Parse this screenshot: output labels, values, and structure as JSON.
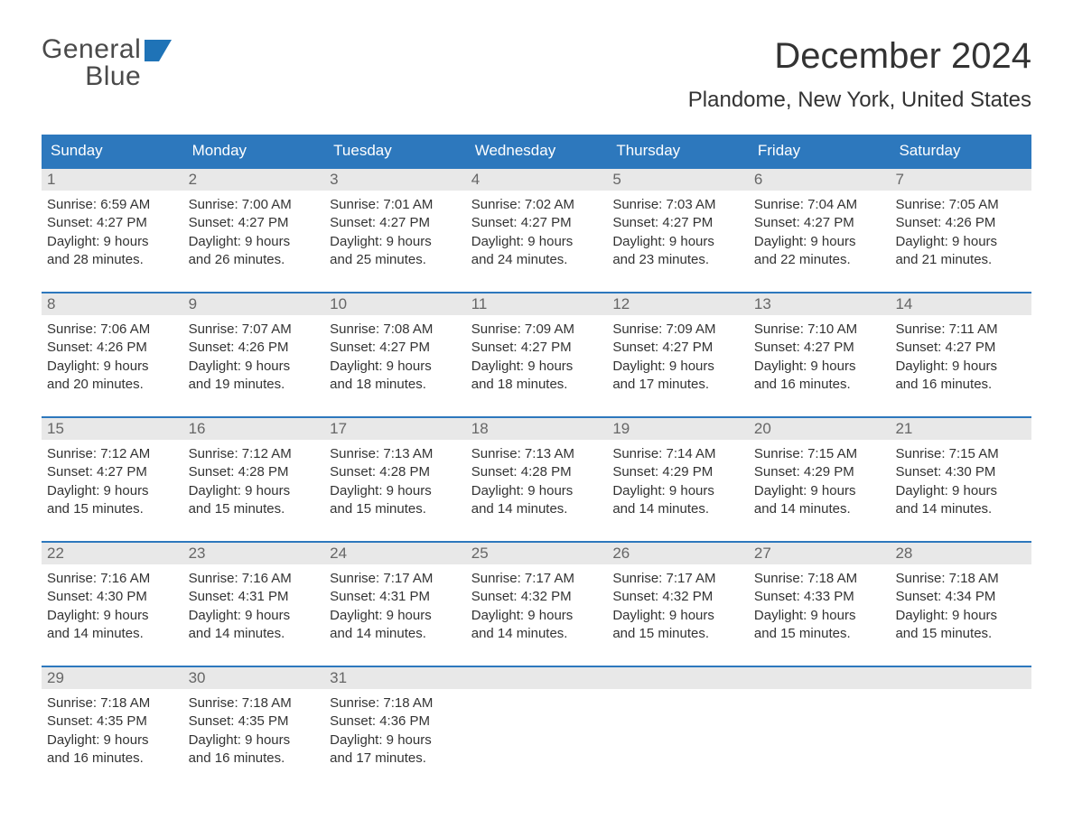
{
  "brand": {
    "word1": "General",
    "word2": "Blue",
    "accent_color": "#1f73b7",
    "text_color": "#4a4a4a"
  },
  "title": {
    "month": "December 2024",
    "location": "Plandome, New York, United States"
  },
  "colors": {
    "header_bg": "#2d78bd",
    "header_text": "#ffffff",
    "week_border": "#2d78bd",
    "daynum_bg": "#e8e8e8",
    "daynum_text": "#666666",
    "body_text": "#333333",
    "page_bg": "#ffffff"
  },
  "typography": {
    "month_title_fontsize": 40,
    "location_fontsize": 24,
    "dayhead_fontsize": 17,
    "daynum_fontsize": 17,
    "daybody_fontsize": 15
  },
  "day_headers": [
    "Sunday",
    "Monday",
    "Tuesday",
    "Wednesday",
    "Thursday",
    "Friday",
    "Saturday"
  ],
  "weeks": [
    [
      {
        "num": "1",
        "sunrise": "Sunrise: 6:59 AM",
        "sunset": "Sunset: 4:27 PM",
        "daylight1": "Daylight: 9 hours",
        "daylight2": "and 28 minutes."
      },
      {
        "num": "2",
        "sunrise": "Sunrise: 7:00 AM",
        "sunset": "Sunset: 4:27 PM",
        "daylight1": "Daylight: 9 hours",
        "daylight2": "and 26 minutes."
      },
      {
        "num": "3",
        "sunrise": "Sunrise: 7:01 AM",
        "sunset": "Sunset: 4:27 PM",
        "daylight1": "Daylight: 9 hours",
        "daylight2": "and 25 minutes."
      },
      {
        "num": "4",
        "sunrise": "Sunrise: 7:02 AM",
        "sunset": "Sunset: 4:27 PM",
        "daylight1": "Daylight: 9 hours",
        "daylight2": "and 24 minutes."
      },
      {
        "num": "5",
        "sunrise": "Sunrise: 7:03 AM",
        "sunset": "Sunset: 4:27 PM",
        "daylight1": "Daylight: 9 hours",
        "daylight2": "and 23 minutes."
      },
      {
        "num": "6",
        "sunrise": "Sunrise: 7:04 AM",
        "sunset": "Sunset: 4:27 PM",
        "daylight1": "Daylight: 9 hours",
        "daylight2": "and 22 minutes."
      },
      {
        "num": "7",
        "sunrise": "Sunrise: 7:05 AM",
        "sunset": "Sunset: 4:26 PM",
        "daylight1": "Daylight: 9 hours",
        "daylight2": "and 21 minutes."
      }
    ],
    [
      {
        "num": "8",
        "sunrise": "Sunrise: 7:06 AM",
        "sunset": "Sunset: 4:26 PM",
        "daylight1": "Daylight: 9 hours",
        "daylight2": "and 20 minutes."
      },
      {
        "num": "9",
        "sunrise": "Sunrise: 7:07 AM",
        "sunset": "Sunset: 4:26 PM",
        "daylight1": "Daylight: 9 hours",
        "daylight2": "and 19 minutes."
      },
      {
        "num": "10",
        "sunrise": "Sunrise: 7:08 AM",
        "sunset": "Sunset: 4:27 PM",
        "daylight1": "Daylight: 9 hours",
        "daylight2": "and 18 minutes."
      },
      {
        "num": "11",
        "sunrise": "Sunrise: 7:09 AM",
        "sunset": "Sunset: 4:27 PM",
        "daylight1": "Daylight: 9 hours",
        "daylight2": "and 18 minutes."
      },
      {
        "num": "12",
        "sunrise": "Sunrise: 7:09 AM",
        "sunset": "Sunset: 4:27 PM",
        "daylight1": "Daylight: 9 hours",
        "daylight2": "and 17 minutes."
      },
      {
        "num": "13",
        "sunrise": "Sunrise: 7:10 AM",
        "sunset": "Sunset: 4:27 PM",
        "daylight1": "Daylight: 9 hours",
        "daylight2": "and 16 minutes."
      },
      {
        "num": "14",
        "sunrise": "Sunrise: 7:11 AM",
        "sunset": "Sunset: 4:27 PM",
        "daylight1": "Daylight: 9 hours",
        "daylight2": "and 16 minutes."
      }
    ],
    [
      {
        "num": "15",
        "sunrise": "Sunrise: 7:12 AM",
        "sunset": "Sunset: 4:27 PM",
        "daylight1": "Daylight: 9 hours",
        "daylight2": "and 15 minutes."
      },
      {
        "num": "16",
        "sunrise": "Sunrise: 7:12 AM",
        "sunset": "Sunset: 4:28 PM",
        "daylight1": "Daylight: 9 hours",
        "daylight2": "and 15 minutes."
      },
      {
        "num": "17",
        "sunrise": "Sunrise: 7:13 AM",
        "sunset": "Sunset: 4:28 PM",
        "daylight1": "Daylight: 9 hours",
        "daylight2": "and 15 minutes."
      },
      {
        "num": "18",
        "sunrise": "Sunrise: 7:13 AM",
        "sunset": "Sunset: 4:28 PM",
        "daylight1": "Daylight: 9 hours",
        "daylight2": "and 14 minutes."
      },
      {
        "num": "19",
        "sunrise": "Sunrise: 7:14 AM",
        "sunset": "Sunset: 4:29 PM",
        "daylight1": "Daylight: 9 hours",
        "daylight2": "and 14 minutes."
      },
      {
        "num": "20",
        "sunrise": "Sunrise: 7:15 AM",
        "sunset": "Sunset: 4:29 PM",
        "daylight1": "Daylight: 9 hours",
        "daylight2": "and 14 minutes."
      },
      {
        "num": "21",
        "sunrise": "Sunrise: 7:15 AM",
        "sunset": "Sunset: 4:30 PM",
        "daylight1": "Daylight: 9 hours",
        "daylight2": "and 14 minutes."
      }
    ],
    [
      {
        "num": "22",
        "sunrise": "Sunrise: 7:16 AM",
        "sunset": "Sunset: 4:30 PM",
        "daylight1": "Daylight: 9 hours",
        "daylight2": "and 14 minutes."
      },
      {
        "num": "23",
        "sunrise": "Sunrise: 7:16 AM",
        "sunset": "Sunset: 4:31 PM",
        "daylight1": "Daylight: 9 hours",
        "daylight2": "and 14 minutes."
      },
      {
        "num": "24",
        "sunrise": "Sunrise: 7:17 AM",
        "sunset": "Sunset: 4:31 PM",
        "daylight1": "Daylight: 9 hours",
        "daylight2": "and 14 minutes."
      },
      {
        "num": "25",
        "sunrise": "Sunrise: 7:17 AM",
        "sunset": "Sunset: 4:32 PM",
        "daylight1": "Daylight: 9 hours",
        "daylight2": "and 14 minutes."
      },
      {
        "num": "26",
        "sunrise": "Sunrise: 7:17 AM",
        "sunset": "Sunset: 4:32 PM",
        "daylight1": "Daylight: 9 hours",
        "daylight2": "and 15 minutes."
      },
      {
        "num": "27",
        "sunrise": "Sunrise: 7:18 AM",
        "sunset": "Sunset: 4:33 PM",
        "daylight1": "Daylight: 9 hours",
        "daylight2": "and 15 minutes."
      },
      {
        "num": "28",
        "sunrise": "Sunrise: 7:18 AM",
        "sunset": "Sunset: 4:34 PM",
        "daylight1": "Daylight: 9 hours",
        "daylight2": "and 15 minutes."
      }
    ],
    [
      {
        "num": "29",
        "sunrise": "Sunrise: 7:18 AM",
        "sunset": "Sunset: 4:35 PM",
        "daylight1": "Daylight: 9 hours",
        "daylight2": "and 16 minutes."
      },
      {
        "num": "30",
        "sunrise": "Sunrise: 7:18 AM",
        "sunset": "Sunset: 4:35 PM",
        "daylight1": "Daylight: 9 hours",
        "daylight2": "and 16 minutes."
      },
      {
        "num": "31",
        "sunrise": "Sunrise: 7:18 AM",
        "sunset": "Sunset: 4:36 PM",
        "daylight1": "Daylight: 9 hours",
        "daylight2": "and 17 minutes."
      },
      {
        "empty": true
      },
      {
        "empty": true
      },
      {
        "empty": true
      },
      {
        "empty": true
      }
    ]
  ]
}
